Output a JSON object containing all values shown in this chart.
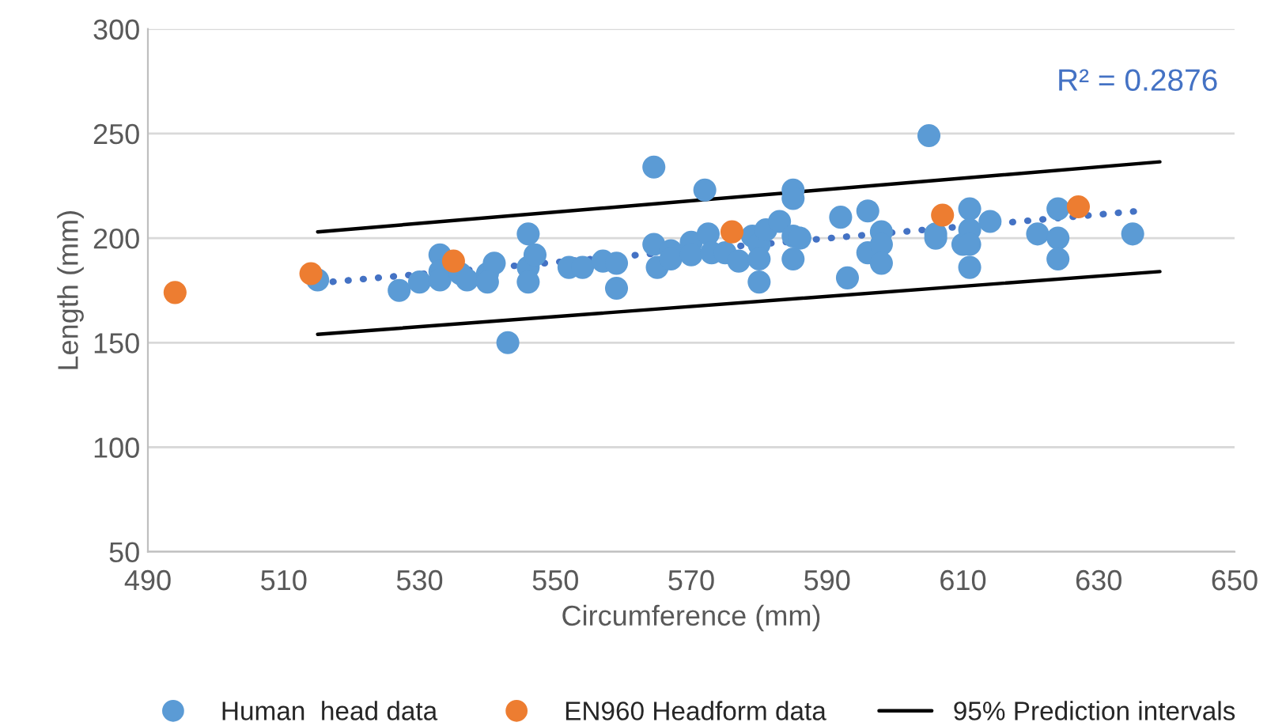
{
  "chart_data": {
    "type": "scatter",
    "xlabel": "Circumference (mm)",
    "ylabel": "Length (mm)",
    "xlim": [
      490,
      650
    ],
    "xticks": [
      490,
      510,
      530,
      550,
      570,
      590,
      610,
      630,
      650
    ],
    "ylim": [
      50,
      300
    ],
    "yticks": [
      50,
      100,
      150,
      200,
      250,
      300
    ],
    "grid": "y",
    "legend": "bottom",
    "annotations": [
      "R² = 0.2876"
    ],
    "series": [
      {
        "name": "Human  head data",
        "color": "#5b9bd5",
        "marker": "circle",
        "x": [
          515,
          527,
          530,
          533,
          533,
          533,
          536,
          537,
          540,
          541,
          540,
          543,
          546,
          546,
          546,
          547,
          552,
          554,
          557,
          559,
          559,
          564.5,
          564.5,
          565,
          567,
          567,
          570,
          570,
          572,
          572.5,
          573,
          575,
          577,
          579,
          580,
          580,
          580,
          581,
          583,
          585,
          585,
          585,
          585,
          586,
          592,
          593,
          596,
          596,
          598,
          598,
          598,
          605,
          606,
          606,
          610,
          611,
          611,
          611,
          611,
          614,
          621,
          624,
          624,
          624,
          635
        ],
        "values": [
          180,
          175,
          179,
          192,
          184,
          180,
          183,
          180,
          183,
          188,
          179,
          150,
          202,
          186,
          179,
          192,
          186,
          186,
          189,
          188,
          176,
          197,
          234,
          186,
          194,
          190,
          198,
          192,
          223,
          202,
          193,
          193,
          189,
          201,
          197,
          190,
          179,
          204,
          208,
          223,
          219,
          201,
          190,
          200,
          210,
          181,
          213,
          193,
          203,
          197,
          188,
          249,
          202,
          200,
          197,
          214,
          204,
          197,
          186,
          208,
          202,
          214,
          200,
          190,
          202
        ]
      },
      {
        "name": "EN960 Headform data",
        "color": "#ed7d31",
        "marker": "circle",
        "x": [
          494,
          514,
          535,
          576,
          607,
          627
        ],
        "values": [
          174,
          183,
          189,
          203,
          211,
          215
        ]
      },
      {
        "name": "95% Prediction intervals",
        "color": "#000000",
        "type": "line",
        "line_style": "solid",
        "marker": "none",
        "x": [
          515,
          639
        ],
        "values": [
          203,
          236.5
        ]
      },
      {
        "color": "#000000",
        "type": "line",
        "line_style": "solid",
        "marker": "none",
        "x": [
          515,
          639
        ],
        "values": [
          154,
          184
        ]
      },
      {
        "color": "#4472c4",
        "type": "line",
        "line_style": "dotted",
        "marker": "none",
        "x": [
          515,
          636
        ],
        "values": [
          178.5,
          213
        ]
      }
    ]
  }
}
